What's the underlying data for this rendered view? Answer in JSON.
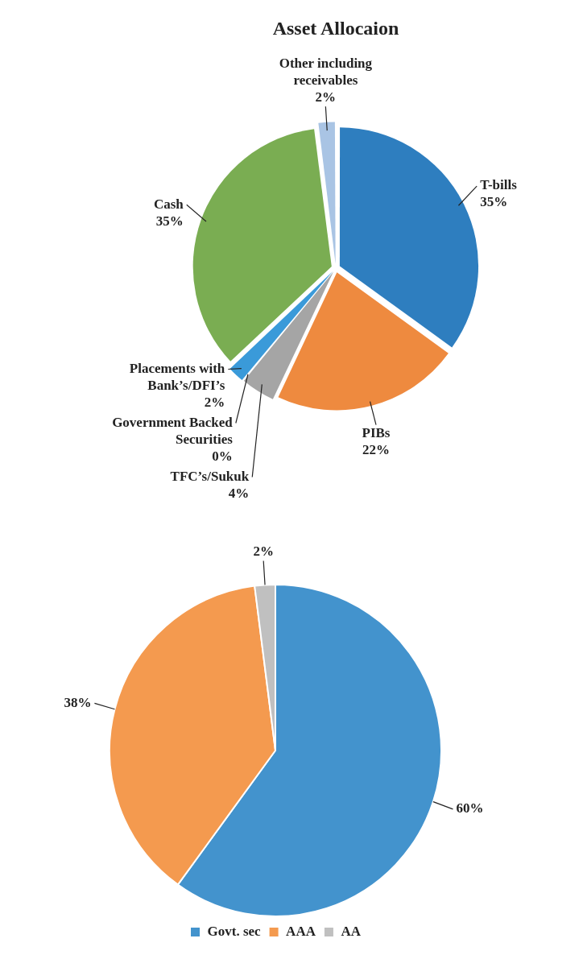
{
  "chart_data": [
    {
      "type": "pie",
      "title": "Asset Allocaion",
      "categories": [
        "T-bills",
        "PIBs",
        "TFC’s/Sukuk",
        "Government Backed Securities",
        "Placements with Bank’s/DFI’s",
        "Cash",
        "Other including receivables"
      ],
      "values": [
        35,
        22,
        4,
        0,
        2,
        35,
        2
      ],
      "value_labels": [
        "35%",
        "22%",
        "4%",
        "0%",
        "2%",
        "35%",
        "2%"
      ],
      "colors": [
        "#2e7ebf",
        "#ee8a3f",
        "#a5a5a5",
        "#ffc000",
        "#3a9ad9",
        "#7aad52",
        "#a9c4e4"
      ]
    },
    {
      "type": "pie",
      "categories": [
        "Govt. sec",
        "AAA",
        "AA"
      ],
      "values": [
        60,
        38,
        2
      ],
      "value_labels": [
        "60%",
        "38%",
        "2%"
      ],
      "colors": [
        "#4393cd",
        "#f49a4f",
        "#c0c0c0"
      ],
      "legend": "bottom"
    }
  ]
}
